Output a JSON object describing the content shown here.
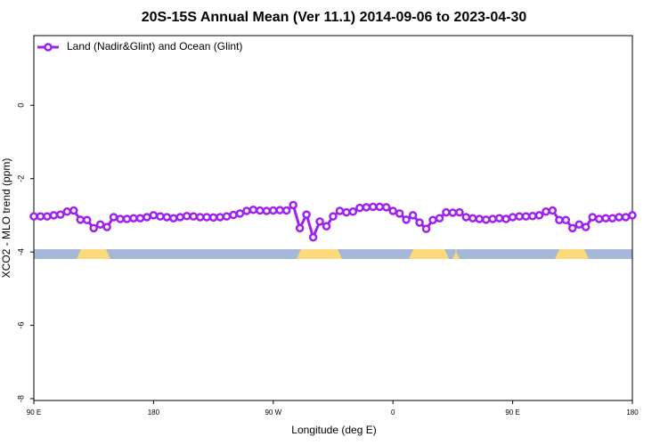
{
  "chart_data": {
    "type": "line",
    "title": "20S-15S Annual Mean (Ver 11.1)   2014-09-06 to 2023-04-30",
    "x_label": "Longitude (deg E)",
    "y_label": "XCO2 - MLO trend (ppm)",
    "x": [
      90,
      95,
      100,
      105,
      110,
      115,
      120,
      125,
      130,
      135,
      140,
      145,
      150,
      155,
      160,
      165,
      170,
      175,
      180,
      185,
      190,
      195,
      200,
      205,
      210,
      215,
      220,
      225,
      230,
      235,
      240,
      245,
      250,
      255,
      260,
      265,
      270,
      275,
      280,
      285,
      290,
      295,
      300,
      305,
      310,
      315,
      320,
      325,
      330,
      335,
      340,
      345,
      350,
      355,
      360,
      365,
      370,
      375,
      380,
      385,
      390,
      395,
      400,
      405,
      410,
      415,
      420,
      425,
      430,
      435,
      440,
      445,
      450,
      455,
      460,
      465,
      470,
      475,
      480,
      485,
      490,
      495,
      500,
      505,
      510,
      515,
      520,
      525,
      530,
      535,
      540
    ],
    "series": [
      {
        "name": "Land (Nadir&Glint) and Ocean (Glint)",
        "color": "#a020f0",
        "values": [
          -3.03,
          -3.03,
          -3.03,
          -3.0,
          -2.98,
          -2.9,
          -2.87,
          -3.12,
          -3.13,
          -3.35,
          -3.25,
          -3.32,
          -3.05,
          -3.1,
          -3.1,
          -3.08,
          -3.08,
          -3.05,
          -3.0,
          -3.03,
          -3.05,
          -3.08,
          -3.05,
          -3.02,
          -3.03,
          -3.05,
          -3.05,
          -3.06,
          -3.05,
          -3.03,
          -2.99,
          -2.95,
          -2.88,
          -2.85,
          -2.87,
          -2.88,
          -2.87,
          -2.86,
          -2.87,
          -2.72,
          -3.35,
          -2.98,
          -3.6,
          -3.17,
          -3.3,
          -3.03,
          -2.88,
          -2.92,
          -2.9,
          -2.8,
          -2.78,
          -2.77,
          -2.77,
          -2.78,
          -2.88,
          -2.95,
          -3.12,
          -3.0,
          -3.2,
          -3.37,
          -3.13,
          -3.08,
          -2.92,
          -2.93,
          -2.92,
          -3.05,
          -3.08,
          -3.1,
          -3.12,
          -3.1,
          -3.08,
          -3.1,
          -3.05,
          -3.03,
          -3.03,
          -3.02,
          -3.0,
          -2.9,
          -2.87,
          -3.13,
          -3.13,
          -3.35,
          -3.25,
          -3.32,
          -3.05,
          -3.1,
          -3.08,
          -3.08,
          -3.05,
          -3.05,
          -3.0
        ]
      }
    ],
    "xlim": [
      90,
      540
    ],
    "xticks": [
      {
        "value": 90,
        "label": "90 E"
      },
      180,
      {
        "value": 270,
        "label": "90 W"
      },
      {
        "value": 360,
        "label": "0"
      },
      {
        "value": 450,
        "label": "90 E"
      },
      {
        "value": 540,
        "label": "180"
      }
    ],
    "ylim": [
      -8.05,
      1.9
    ],
    "yticks": [
      0,
      -2,
      -4,
      -6,
      -8
    ],
    "legend": "top-left"
  }
}
